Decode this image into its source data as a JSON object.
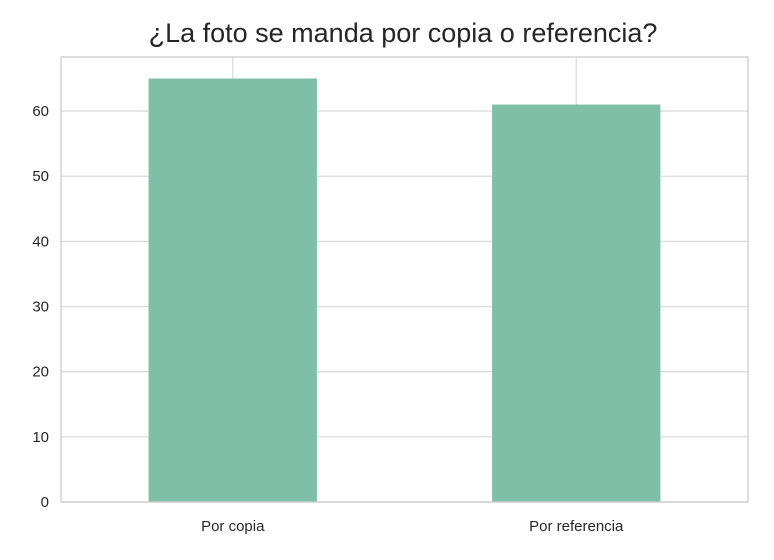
{
  "chart_data": {
    "type": "bar",
    "title": "¿La foto se manda por copia o referencia?",
    "categories": [
      "Por copia",
      "Por referencia"
    ],
    "values": [
      65,
      61
    ],
    "xlabel": "",
    "ylabel": "",
    "ylim": [
      0,
      68.3
    ],
    "yticks": [
      0,
      10,
      20,
      30,
      40,
      50,
      60
    ],
    "grid": true,
    "bar_color": "#7fbfa8",
    "grid_color": "#dcdcdc",
    "frame_color": "#cccccc"
  }
}
